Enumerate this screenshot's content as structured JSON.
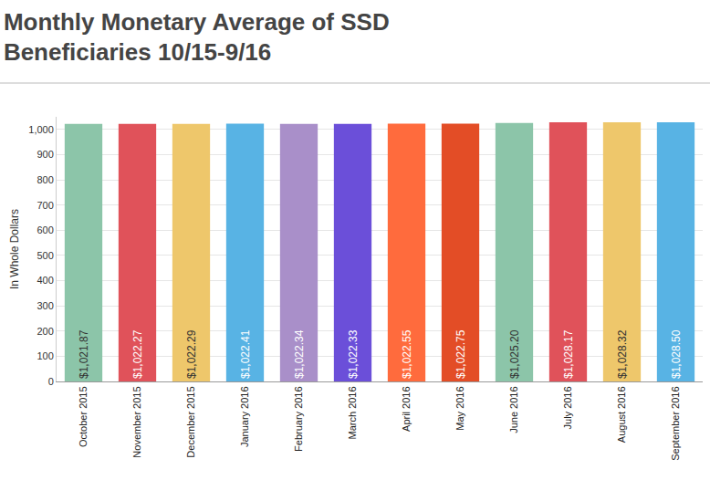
{
  "chart_data": {
    "type": "bar",
    "title": "Monthly Monetary Average of SSD Beneficiaries 10/15-9/16",
    "y_label": "In Whole Dollars",
    "categories": [
      "October 2015",
      "November 2015",
      "December 2015",
      "January 2016",
      "February 2016",
      "March 2016",
      "April 2016",
      "May 2016",
      "June 2016",
      "July 2016",
      "August 2016",
      "September 2016"
    ],
    "values": [
      1021.87,
      1022.27,
      1022.29,
      1022.41,
      1022.34,
      1022.33,
      1022.55,
      1022.75,
      1025.2,
      1028.17,
      1028.32,
      1028.5
    ],
    "value_labels": [
      "$1,021.87",
      "$1,022.27",
      "$1,022.29",
      "$1,022.41",
      "$1,022.34",
      "$1,022.33",
      "$1,022.55",
      "$1,022.75",
      "$1,025.20",
      "$1,028.17",
      "$1,028.32",
      "$1,028.50"
    ],
    "colors": [
      "#8cc5a9",
      "#e0525a",
      "#eec76b",
      "#58b3e4",
      "#a98fc9",
      "#6b4fd9",
      "#ff6b3d",
      "#e34d26",
      "#8cc5a9",
      "#e0525a",
      "#eec76b",
      "#58b3e4"
    ],
    "data_labels": true,
    "ylim": [
      0,
      1050
    ],
    "yticks": [
      0,
      100,
      200,
      300,
      400,
      500,
      600,
      700,
      800,
      900,
      {
        "value": 1000,
        "label": "1,000"
      }
    ],
    "grid": true
  }
}
